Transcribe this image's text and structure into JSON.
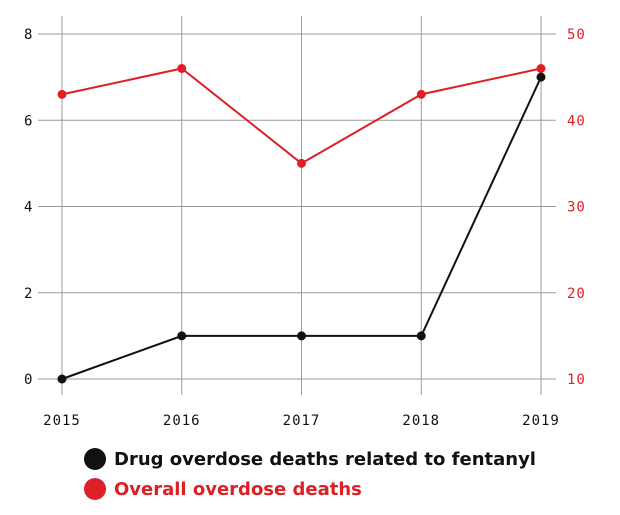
{
  "chart_data": {
    "type": "line",
    "x": [
      "2015",
      "2016",
      "2017",
      "2018",
      "2019"
    ],
    "left_axis": {
      "range": [
        0,
        8
      ],
      "ticks": [
        "0",
        "2",
        "4",
        "6",
        "8"
      ]
    },
    "right_axis": {
      "range": [
        10,
        50
      ],
      "ticks": [
        "10",
        "20",
        "30",
        "40",
        "50"
      ]
    },
    "grid": true,
    "legend_placement": "bottom",
    "series": [
      {
        "name": "Drug overdose deaths related to fentanyl",
        "axis": "left",
        "color": "#111111",
        "values": [
          0,
          1,
          1,
          1,
          7
        ]
      },
      {
        "name": "Overall overdose deaths",
        "axis": "right",
        "color": "#dd1f26",
        "values": [
          43,
          46,
          35,
          43,
          46
        ]
      }
    ]
  }
}
